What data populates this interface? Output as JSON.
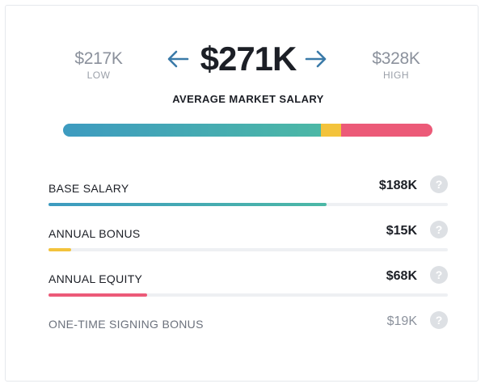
{
  "range": {
    "low": {
      "value": "$217K",
      "label": "LOW"
    },
    "high": {
      "value": "$328K",
      "label": "HIGH"
    },
    "average": {
      "value": "$271K",
      "label": "AVERAGE MARKET SALARY"
    }
  },
  "icons": {
    "prev": "arrow-left-icon",
    "next": "arrow-right-icon",
    "help": "question-circle-icon"
  },
  "colors": {
    "base": "#3fa8b3",
    "bonus": "#f3c33c",
    "equity": "#ec5a78",
    "arrow": "#3a7aa8"
  },
  "stack_bar": {
    "segments": [
      {
        "name": "Base Salary",
        "fraction": 0.697
      },
      {
        "name": "Annual Bonus",
        "fraction": 0.056
      },
      {
        "name": "Annual Equity",
        "fraction": 0.247
      }
    ]
  },
  "breakdown": [
    {
      "label": "BASE SALARY",
      "amount": "$188K",
      "fill_fraction": 0.697
    },
    {
      "label": "ANNUAL BONUS",
      "amount": "$15K",
      "fill_fraction": 0.056
    },
    {
      "label": "ANNUAL EQUITY",
      "amount": "$68K",
      "fill_fraction": 0.247
    },
    {
      "label": "ONE-TIME SIGNING BONUS",
      "amount": "$19K"
    }
  ],
  "help_glyph": "?"
}
